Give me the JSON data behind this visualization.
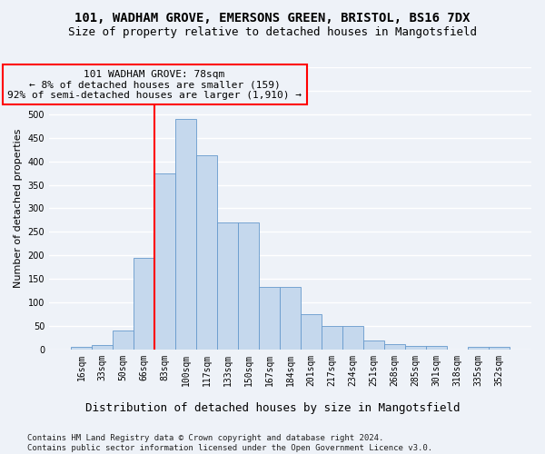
{
  "title1": "101, WADHAM GROVE, EMERSONS GREEN, BRISTOL, BS16 7DX",
  "title2": "Size of property relative to detached houses in Mangotsfield",
  "xlabel": "Distribution of detached houses by size in Mangotsfield",
  "ylabel": "Number of detached properties",
  "bar_color": "#c5d8ed",
  "bar_edge_color": "#6699cc",
  "categories": [
    "16sqm",
    "33sqm",
    "50sqm",
    "66sqm",
    "83sqm",
    "100sqm",
    "117sqm",
    "133sqm",
    "150sqm",
    "167sqm",
    "184sqm",
    "201sqm",
    "217sqm",
    "234sqm",
    "251sqm",
    "268sqm",
    "285sqm",
    "301sqm",
    "318sqm",
    "335sqm",
    "352sqm"
  ],
  "values": [
    5,
    10,
    40,
    195,
    375,
    490,
    412,
    270,
    270,
    133,
    133,
    75,
    50,
    50,
    20,
    12,
    8,
    7,
    0,
    6,
    5
  ],
  "ylim_max": 600,
  "ytick_step": 50,
  "property_line_x": 3.5,
  "annotation_line1": "101 WADHAM GROVE: 78sqm",
  "annotation_line2": "← 8% of detached houses are smaller (159)",
  "annotation_line3": "92% of semi-detached houses are larger (1,910) →",
  "footnote1": "Contains HM Land Registry data © Crown copyright and database right 2024.",
  "footnote2": "Contains public sector information licensed under the Open Government Licence v3.0.",
  "bg_color": "#eef2f8",
  "grid_color": "#ffffff",
  "title1_fontsize": 10,
  "title2_fontsize": 9,
  "tick_fontsize": 7,
  "annot_fontsize": 8,
  "ylabel_fontsize": 8,
  "xlabel_fontsize": 9,
  "footnote_fontsize": 6.5
}
